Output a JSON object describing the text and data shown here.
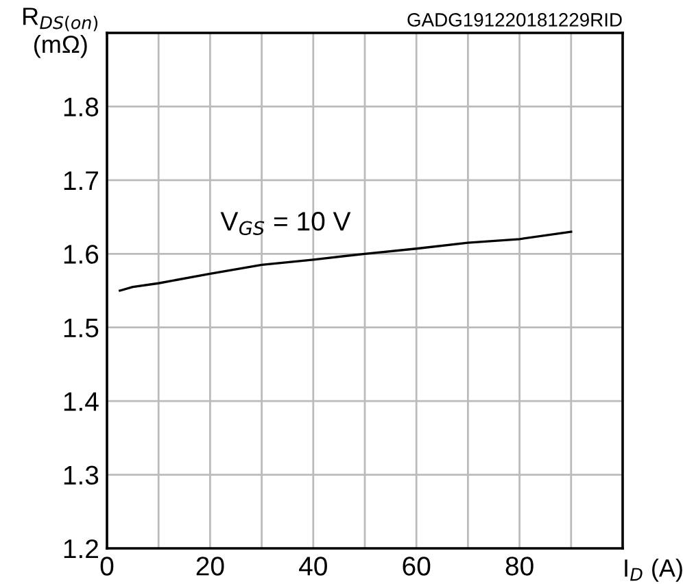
{
  "chart_data": {
    "type": "line",
    "xlabel": "I$_{D}$ (A)",
    "ylabel": "R$_{DS(on)}$\n(mΩ)",
    "annotations": [
      "V$_{GS}$ = 10 V",
      "GADG191220181229RID"
    ],
    "x": [
      2.5,
      5,
      10,
      20,
      30,
      40,
      50,
      60,
      70,
      80,
      90
    ],
    "series": [
      {
        "color": "#000000",
        "values": [
          1.55,
          1.555,
          1.56,
          1.573,
          1.585,
          1.592,
          1.6,
          1.607,
          1.615,
          1.62,
          1.63
        ]
      }
    ],
    "xlim": [
      0,
      100
    ],
    "ylim": [
      1.2,
      1.9
    ],
    "xticks": [
      0,
      {
        "value": 10,
        "label": null
      },
      20,
      {
        "value": 30,
        "label": null
      },
      40,
      {
        "value": 50,
        "label": null
      },
      60,
      {
        "value": 70,
        "label": null
      },
      80,
      {
        "value": 90,
        "label": null
      },
      {
        "value": 100,
        "label": null
      }
    ],
    "yticks": [
      1.2,
      1.3,
      1.4,
      1.5,
      1.6,
      1.7,
      1.8,
      {
        "value": 1.9,
        "label": null
      }
    ],
    "grid": true,
    "marker": "none",
    "line_style": "solid"
  }
}
